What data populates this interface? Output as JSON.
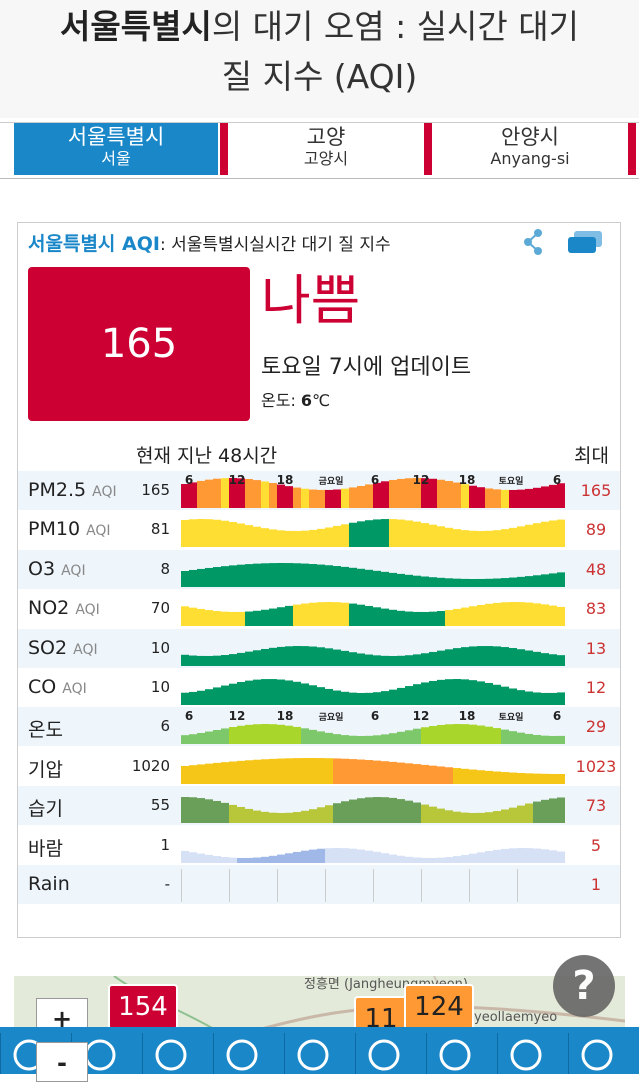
{
  "header": {
    "title_bold": "서울특별시",
    "title_rest_line1": "의 대기 오염 : 실시간 대기",
    "title_line2": "질 지수 (AQI)"
  },
  "tabs": [
    {
      "label": "서울특별시",
      "sub": "서울",
      "active": true
    },
    {
      "label": "고양",
      "sub": "고양시",
      "active": false
    },
    {
      "label": "안양시",
      "sub": "Anyang-si",
      "active": false
    }
  ],
  "card": {
    "title_city": "서울특별시 AQI",
    "title_rest": ": 서울특별시실시간 대기 질 지수",
    "aqi_value": "165",
    "level": "나쁨",
    "updated": "토요일 7시에 업데이트",
    "temp_label": "온도: ",
    "temp_value": "6",
    "temp_unit": "℃",
    "col_current": "현재",
    "col_past": "지난 48시간",
    "col_max": "최대",
    "time_labels_top": [
      "6",
      "12",
      "18",
      "금요일",
      "6",
      "12",
      "18",
      "토요일",
      "6"
    ],
    "colors": {
      "good": "#009966",
      "moderate": "#ffde33",
      "usg": "#ff9933",
      "unhealthy": "#cc0033",
      "accent": "#1a87c9"
    }
  },
  "rows": [
    {
      "name": "PM2.5",
      "unit": "AQI",
      "current": "165",
      "max": "165",
      "alt": true
    },
    {
      "name": "PM10",
      "unit": "AQI",
      "current": "81",
      "max": "89",
      "alt": false
    },
    {
      "name": "O3",
      "unit": "AQI",
      "current": "8",
      "max": "48",
      "alt": true
    },
    {
      "name": "NO2",
      "unit": "AQI",
      "current": "70",
      "max": "83",
      "alt": false
    },
    {
      "name": "SO2",
      "unit": "AQI",
      "current": "10",
      "max": "13",
      "alt": true
    },
    {
      "name": "CO",
      "unit": "AQI",
      "current": "10",
      "max": "12",
      "alt": false
    },
    {
      "name": "온도",
      "unit": "",
      "current": "6",
      "max": "29",
      "alt": true
    },
    {
      "name": "기압",
      "unit": "",
      "current": "1020",
      "max": "1023",
      "alt": false
    },
    {
      "name": "습기",
      "unit": "",
      "current": "55",
      "max": "73",
      "alt": true
    },
    {
      "name": "바람",
      "unit": "",
      "current": "1",
      "max": "5",
      "alt": false
    },
    {
      "name": "Rain",
      "unit": "",
      "current": "-",
      "max": "1",
      "alt": true
    }
  ],
  "map": {
    "markers": [
      "154",
      "11",
      "124"
    ],
    "label_a": "정흥면 (Jangheungmyeon)",
    "label_b": "yeollaemyeo",
    "zoom_in": "+",
    "zoom_out": "-",
    "help": "?"
  },
  "nav_icons": [
    "home-icon",
    "location-pin-icon",
    "refresh-icon",
    "mask-icon",
    "faq-icon",
    "search-icon",
    "chat-icon",
    "link-icon",
    "settings-icon"
  ]
}
